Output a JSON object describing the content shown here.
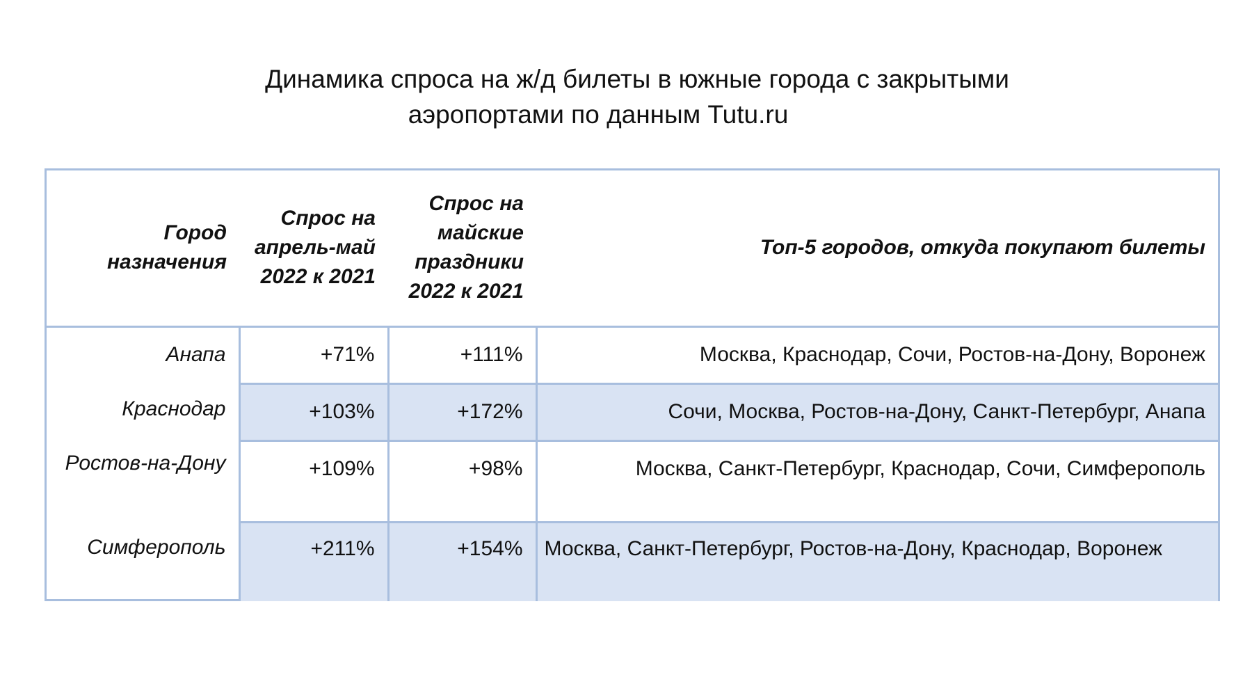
{
  "chart_data": {
    "type": "table",
    "title_line1": "Динамика спроса на ж/д билеты в южные города с закрытыми",
    "title_line2": "аэропортами по данным Tutu.ru",
    "columns": [
      "Город назначения",
      "Спрос на апрель-май 2022 к 2021",
      "Спрос на майские праздники 2022 к 2021",
      "Топ-5 городов, откуда покупают билеты"
    ],
    "header_lines": {
      "col1": [
        "Город",
        "назначения"
      ],
      "col2": [
        "Спрос на",
        "апрель-май",
        "2022 к 2021"
      ],
      "col3": [
        "Спрос на",
        "майские",
        "праздники",
        "2022 к 2021"
      ],
      "col4": [
        "Топ-5 городов, откуда покупают билеты"
      ]
    },
    "rows": [
      {
        "city": "Анапа",
        "april_may": "+71%",
        "may_holidays": "+111%",
        "top5": "Москва, Краснодар, Сочи, Ростов-на-Дону, Воронеж"
      },
      {
        "city": "Краснодар",
        "april_may": "+103%",
        "may_holidays": "+172%",
        "top5": "Сочи, Москва, Ростов-на-Дону, Санкт-Петербург, Анапа"
      },
      {
        "city": "Ростов-на-Дону",
        "april_may": "+109%",
        "may_holidays": "+98%",
        "top5": "Москва, Санкт-Петербург, Краснодар, Сочи, Симферополь"
      },
      {
        "city": "Симферополь",
        "april_may": "+211%",
        "may_holidays": "+154%",
        "top5": "Москва, Санкт-Петербург, Ростов-на-Дону, Краснодар, Воронеж"
      }
    ],
    "values_april_may": [
      71,
      103,
      109,
      211
    ],
    "values_may_holidays": [
      111,
      172,
      98,
      154
    ],
    "colors": {
      "border": "#a8bede",
      "shaded_row": "#d9e3f3"
    }
  }
}
